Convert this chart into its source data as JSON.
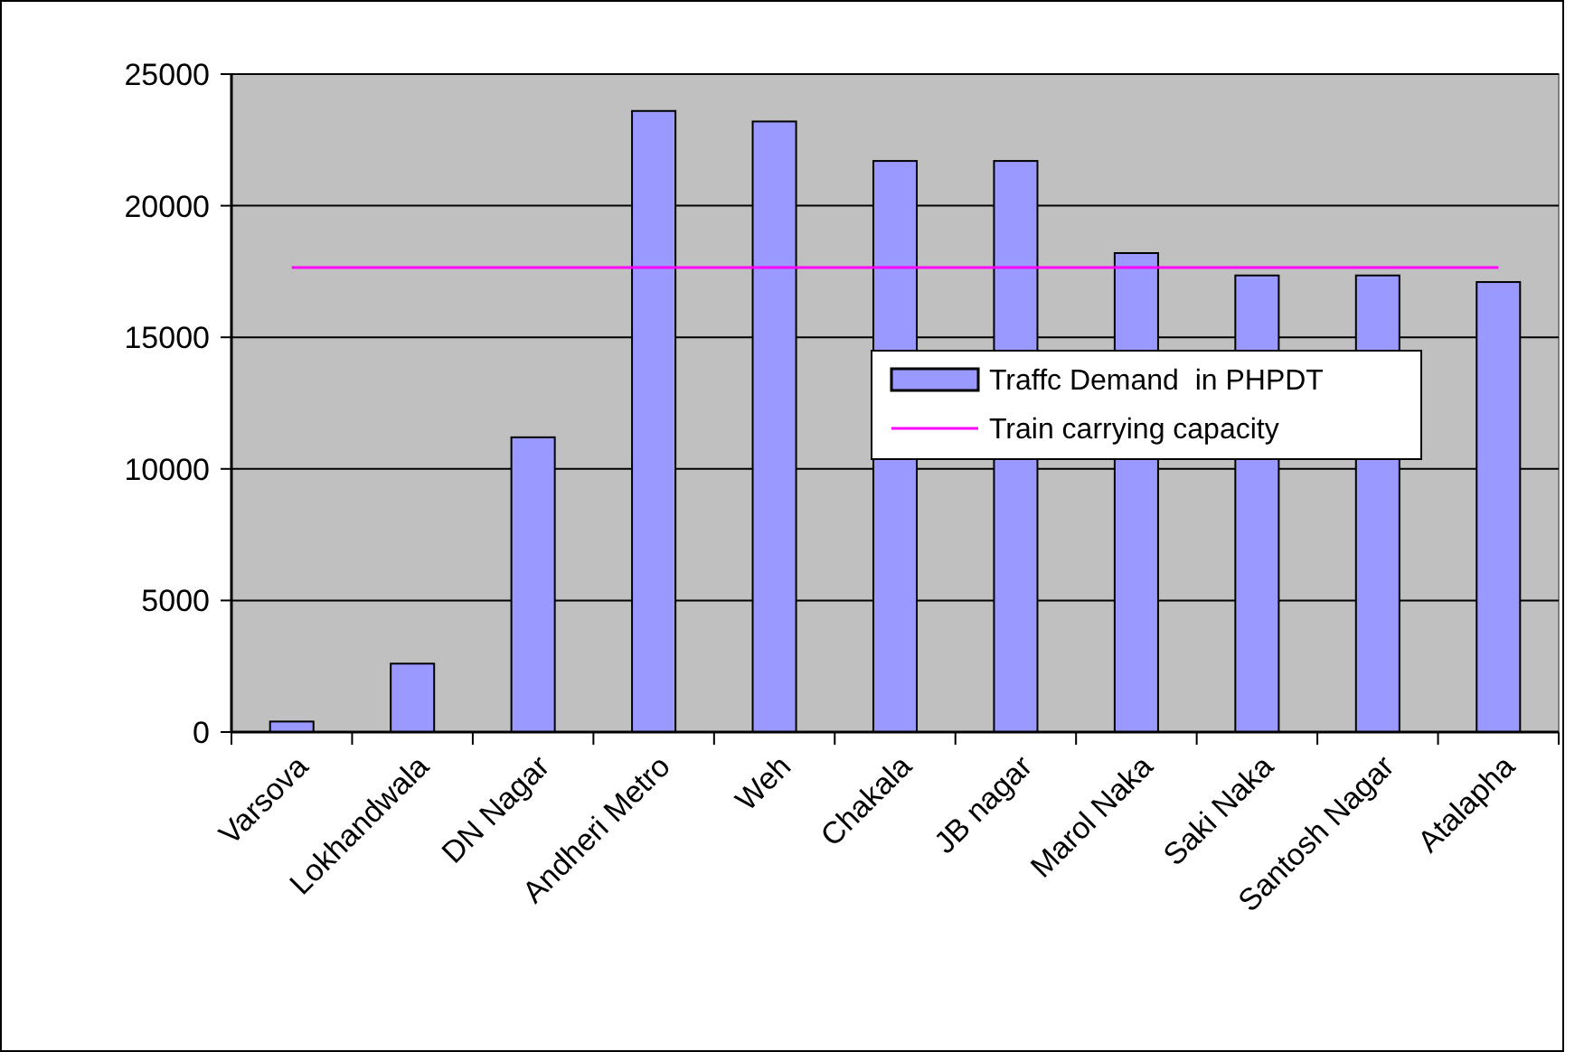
{
  "chart_data": {
    "type": "bar",
    "categories": [
      "Varsova",
      "Lokhandwala",
      "DN Nagar",
      "Andheri Metro",
      "Weh",
      "Chakala",
      "JB nagar",
      "Marol Naka",
      "Saki Naka",
      "Santosh Nagar",
      "Atalapha"
    ],
    "series": [
      {
        "name": "Traffc Demand  in PHPDT",
        "color": "#9999ff",
        "values": [
          400,
          2600,
          11200,
          23600,
          23200,
          21700,
          21700,
          18200,
          17350,
          17350,
          17100
        ]
      },
      {
        "name": "Train carrying capacity",
        "type": "line",
        "color": "#ff00ff",
        "values": [
          17650,
          17650,
          17650,
          17650,
          17650,
          17650,
          17650,
          17650,
          17650,
          17650,
          17650
        ]
      }
    ],
    "ylim": [
      0,
      25000
    ],
    "yticks": [
      0,
      5000,
      10000,
      15000,
      20000,
      25000
    ],
    "grid": "y",
    "legend": "right",
    "marker": "none"
  }
}
